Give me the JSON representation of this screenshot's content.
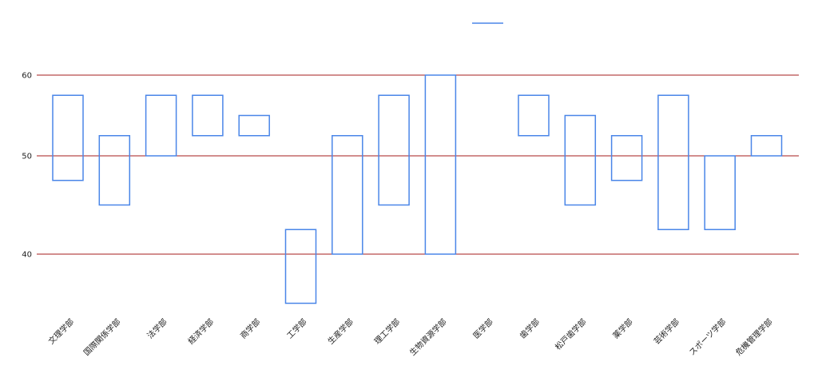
{
  "chart_data": {
    "type": "range-bar",
    "categories": [
      "文理学部",
      "国際関係学部",
      "法学部",
      "経済学部",
      "商学部",
      "工学部",
      "生産学部",
      "理工学部",
      "生物資源学部",
      "医学部",
      "歯学部",
      "松戸歯学部",
      "薬学部",
      "芸術学部",
      "スポーツ学部",
      "危機管理学部"
    ],
    "series": [
      {
        "low": [
          47.5,
          45,
          50,
          52.5,
          52.5,
          35,
          40,
          45,
          40,
          null,
          52.5,
          45,
          47.5,
          42.5,
          42.5,
          50
        ],
        "high": [
          57.5,
          52.5,
          57.5,
          57.5,
          55,
          42.5,
          52.5,
          57.5,
          60,
          null,
          57.5,
          55,
          52.5,
          57.5,
          50,
          52.5
        ]
      }
    ],
    "y_ticks": [
      40,
      50,
      60
    ],
    "ylim": [
      34,
      60.5
    ],
    "grid": true,
    "legend": "top-center",
    "colors": {
      "series": "#4a86e8",
      "grid": "#a61c1c"
    }
  }
}
